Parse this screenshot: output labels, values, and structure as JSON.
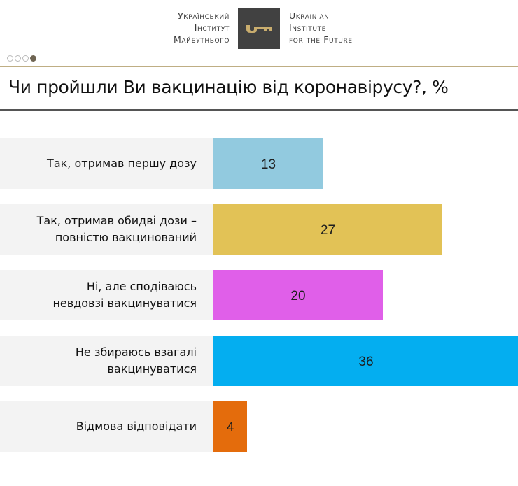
{
  "header": {
    "logo_ua_lines": [
      "Український",
      "Інститут",
      "Майбутнього"
    ],
    "logo_en_lines": [
      "Ukrainian",
      "Institute",
      "for the Future"
    ],
    "logo_icon": "key-icon",
    "logo_bg_color": "#414141",
    "logo_icon_color": "#c9ad6e"
  },
  "pagination": {
    "total": 4,
    "active": 4
  },
  "title": "Чи пройшли Ви вакцинацію від коронавірусу?, %",
  "rows": [
    {
      "label_lines": [
        "Так, отримав першу дозу"
      ],
      "value": "13",
      "color": "#92cadf"
    },
    {
      "label_lines": [
        "Так, отримав обидві дози –",
        "повністю вакцинований"
      ],
      "value": "27",
      "color": "#e2c256"
    },
    {
      "label_lines": [
        "Ні, але сподіваюсь",
        "невдовзі вакцинуватися"
      ],
      "value": "20",
      "color": "#e05fe9"
    },
    {
      "label_lines": [
        "Не збираюсь взагалі",
        "вакцинуватися"
      ],
      "value": "36",
      "color": "#04aef0"
    },
    {
      "label_lines": [
        "Відмова відповідати"
      ],
      "value": "4",
      "color": "#e46c0c"
    }
  ],
  "chart_data": {
    "type": "bar",
    "orientation": "horizontal",
    "title": "Чи пройшли Ви вакцинацію від коронавірусу?, %",
    "categories": [
      "Так, отримав першу дозу",
      "Так, отримав обидві дози – повністю вакцинований",
      "Ні, але сподіваюсь невдовзі вакцинуватися",
      "Не збираюсь взагалі вакцинуватися",
      "Відмова відповідати"
    ],
    "values": [
      13,
      27,
      20,
      36,
      4
    ],
    "colors": [
      "#92cadf",
      "#e2c256",
      "#e05fe9",
      "#04aef0",
      "#e46c0c"
    ],
    "xlabel": "",
    "ylabel": "",
    "unit": "%",
    "grid": false,
    "legend": "none",
    "data_labels": "inside-center"
  }
}
